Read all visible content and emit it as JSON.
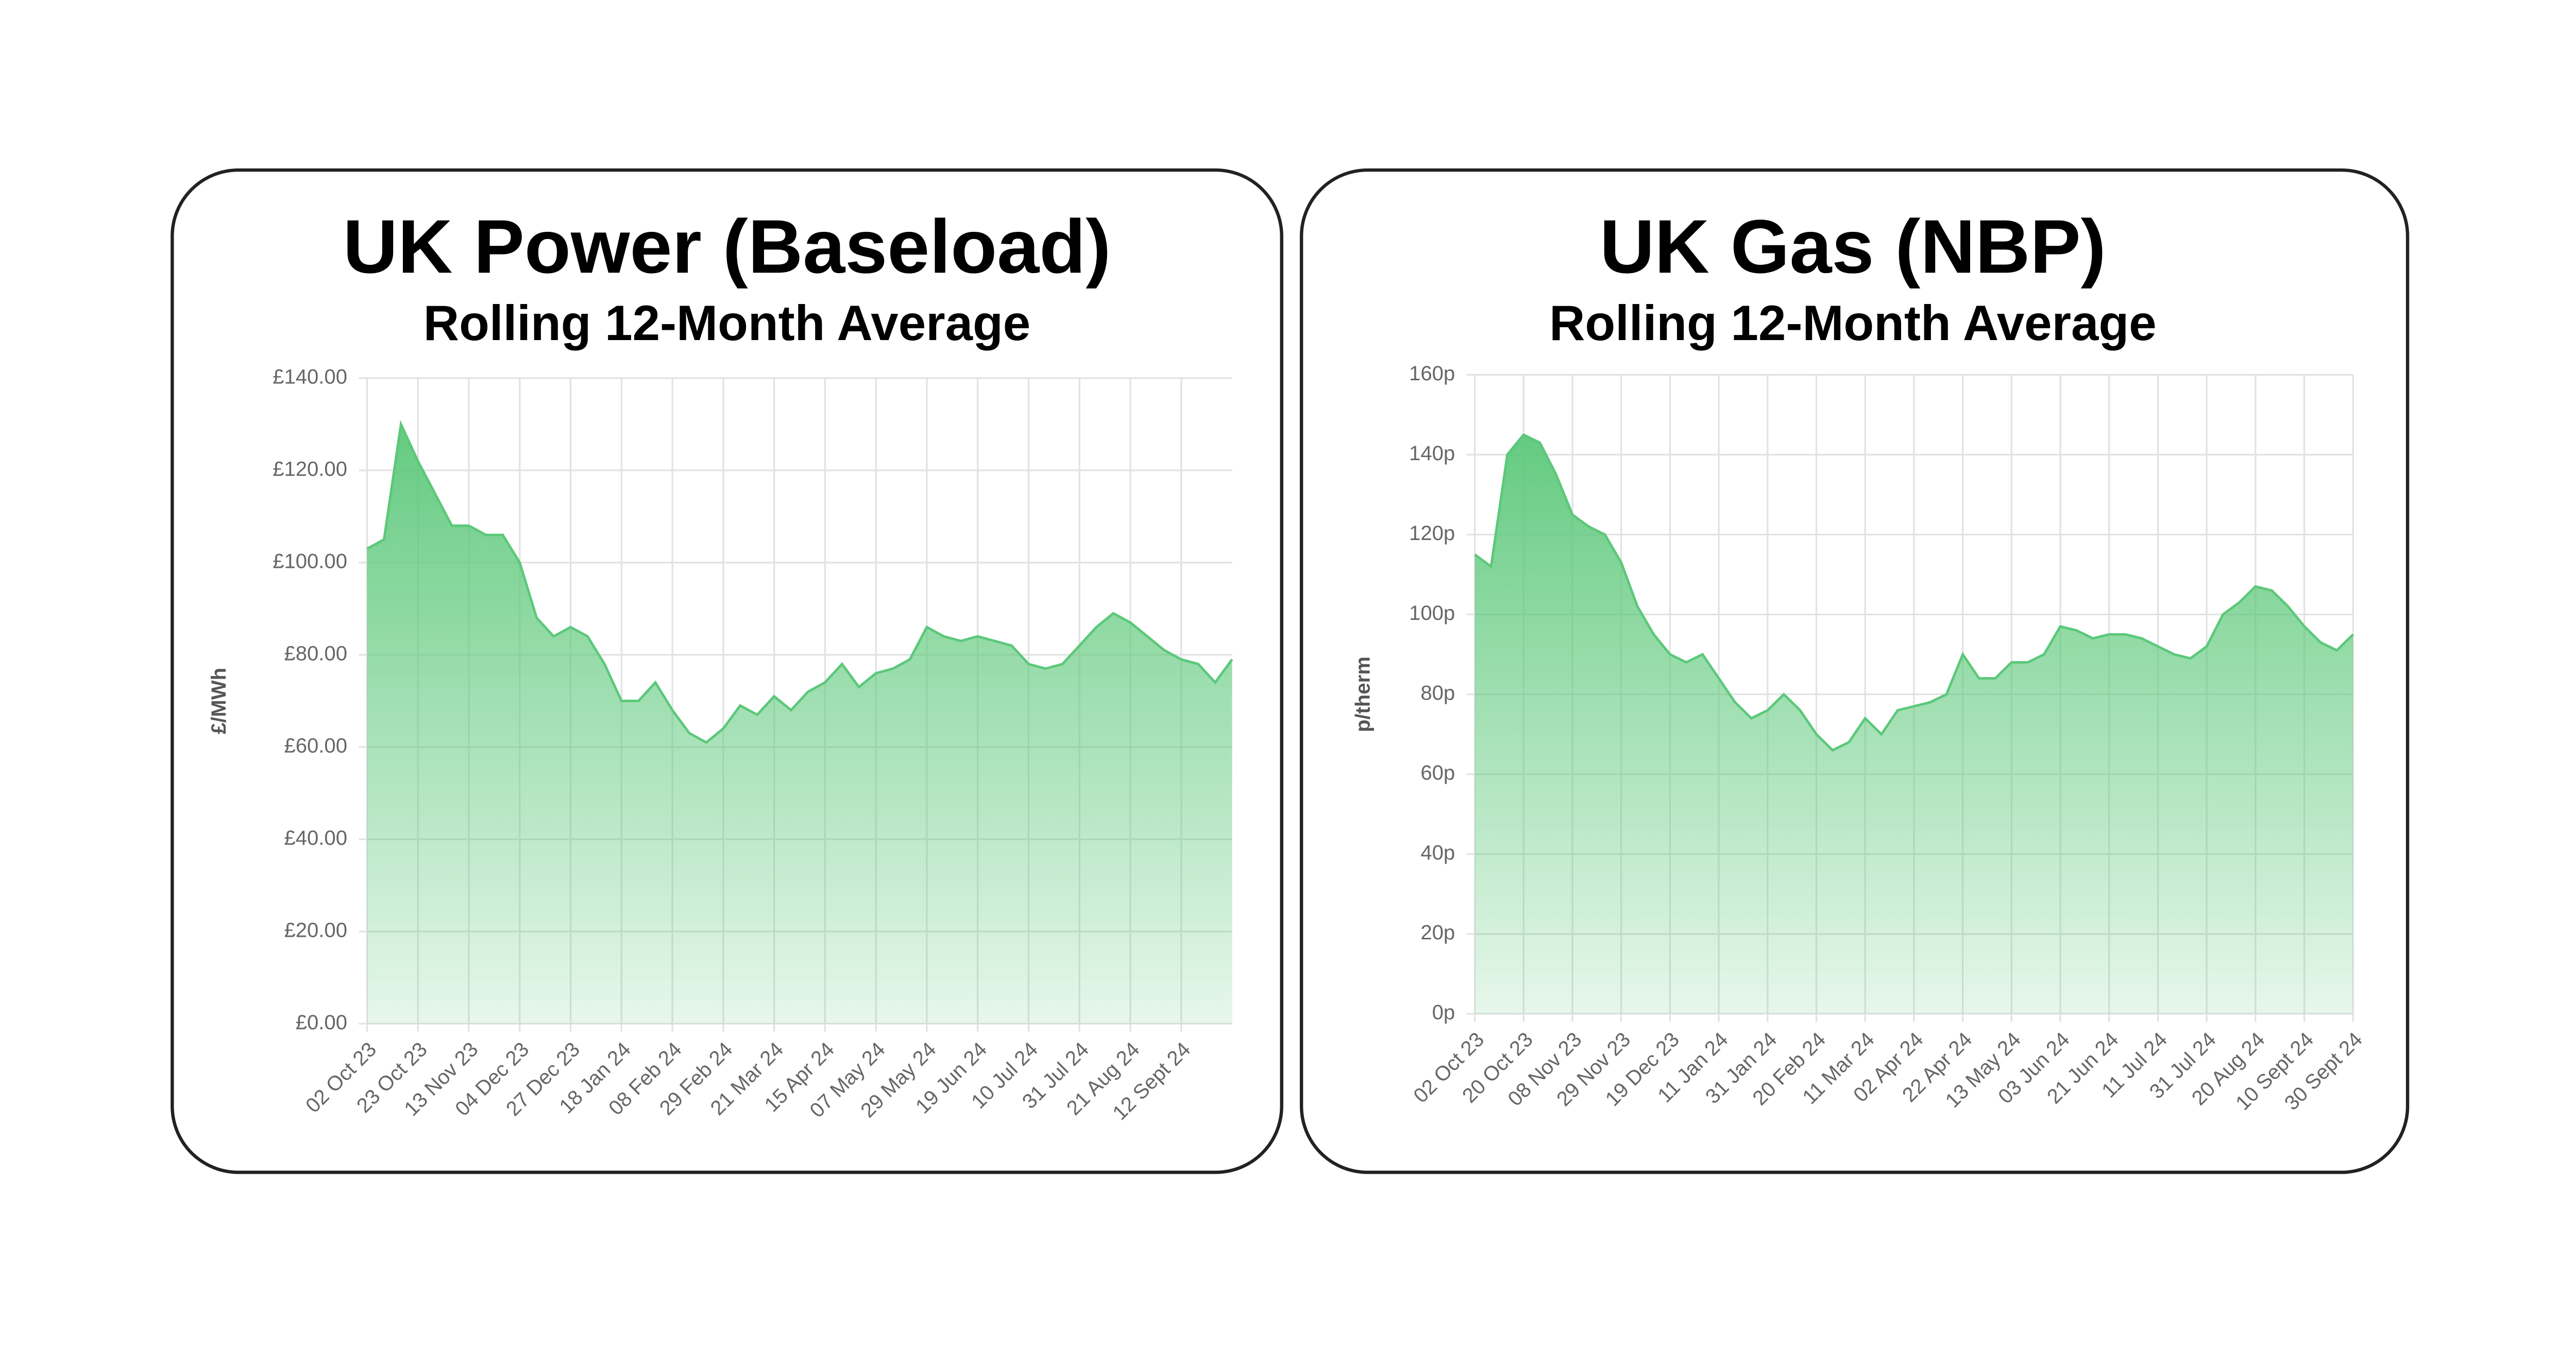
{
  "chart_data": [
    {
      "type": "area",
      "title": "UK Power (Baseload)",
      "subtitle": "Rolling 12-Month Average",
      "y_label": "£/MWh",
      "color": "#5cc87a",
      "grid": true,
      "categories": [
        "02 Oct 23",
        null,
        null,
        "23 Oct 23",
        null,
        null,
        "13 Nov 23",
        null,
        null,
        "04 Dec 23",
        null,
        null,
        "27 Dec 23",
        null,
        null,
        "18 Jan 24",
        null,
        null,
        "08 Feb 24",
        null,
        null,
        "29 Feb 24",
        null,
        null,
        "21 Mar 24",
        null,
        null,
        "15 Apr 24",
        null,
        null,
        "07 May 24",
        null,
        null,
        "29 May 24",
        null,
        null,
        "19 Jun 24",
        null,
        null,
        "10 Jul 24",
        null,
        null,
        "31 Jul 24",
        null,
        null,
        "21 Aug 24",
        null,
        null,
        "12 Sept 24",
        null,
        null,
        null
      ],
      "values": [
        103,
        105,
        130,
        122,
        115,
        108,
        108,
        106,
        106,
        100,
        88,
        84,
        86,
        84,
        78,
        70,
        70,
        74,
        68,
        63,
        61,
        64,
        69,
        67,
        71,
        68,
        72,
        74,
        78,
        73,
        76,
        77,
        79,
        86,
        84,
        83,
        84,
        83,
        82,
        78,
        77,
        78,
        82,
        86,
        89,
        87,
        84,
        81,
        79,
        78,
        74,
        79
      ],
      "ylim": [
        0,
        140
      ],
      "yticks": [
        {
          "value": 0,
          "label": "£0.00"
        },
        {
          "value": 20,
          "label": "£20.00"
        },
        {
          "value": 40,
          "label": "£40.00"
        },
        {
          "value": 60,
          "label": "£60.00"
        },
        {
          "value": 80,
          "label": "£80.00"
        },
        {
          "value": 100,
          "label": "£100.00"
        },
        {
          "value": 120,
          "label": "£120.00"
        },
        {
          "value": 140,
          "label": "£140.00"
        }
      ]
    },
    {
      "type": "area",
      "title": "UK Gas (NBP)",
      "subtitle": "Rolling 12-Month Average",
      "y_label": "p/therm",
      "color": "#5cc87a",
      "grid": true,
      "categories": [
        "02 Oct 23",
        null,
        null,
        "20 Oct 23",
        null,
        null,
        "08 Nov 23",
        null,
        null,
        "29 Nov 23",
        null,
        null,
        "19 Dec 23",
        null,
        null,
        "11 Jan 24",
        null,
        null,
        "31 Jan 24",
        null,
        null,
        "20 Feb 24",
        null,
        null,
        "11 Mar 24",
        null,
        null,
        "02 Apr 24",
        null,
        null,
        "22 Apr 24",
        null,
        null,
        "13 May 24",
        null,
        null,
        "03 Jun 24",
        null,
        null,
        "21 Jun 24",
        null,
        null,
        "11 Jul 24",
        null,
        null,
        "31 Jul 24",
        null,
        null,
        "20 Aug 24",
        null,
        null,
        "10 Sept 24",
        null,
        null,
        "30 Sept 24"
      ],
      "values": [
        115,
        112,
        140,
        145,
        143,
        135,
        125,
        122,
        120,
        113,
        102,
        95,
        90,
        88,
        90,
        84,
        78,
        74,
        76,
        80,
        76,
        70,
        66,
        68,
        74,
        70,
        76,
        77,
        78,
        80,
        90,
        84,
        84,
        88,
        88,
        90,
        97,
        96,
        94,
        95,
        95,
        94,
        92,
        90,
        89,
        92,
        100,
        103,
        107,
        106,
        102,
        97,
        93,
        91,
        95
      ],
      "ylim": [
        0,
        160
      ],
      "yticks": [
        {
          "value": 0,
          "label": "0p"
        },
        {
          "value": 20,
          "label": "20p"
        },
        {
          "value": 40,
          "label": "40p"
        },
        {
          "value": 60,
          "label": "60p"
        },
        {
          "value": 80,
          "label": "80p"
        },
        {
          "value": 100,
          "label": "100p"
        },
        {
          "value": 120,
          "label": "120p"
        },
        {
          "value": 140,
          "label": "140p"
        },
        {
          "value": 160,
          "label": "160p"
        }
      ]
    }
  ]
}
